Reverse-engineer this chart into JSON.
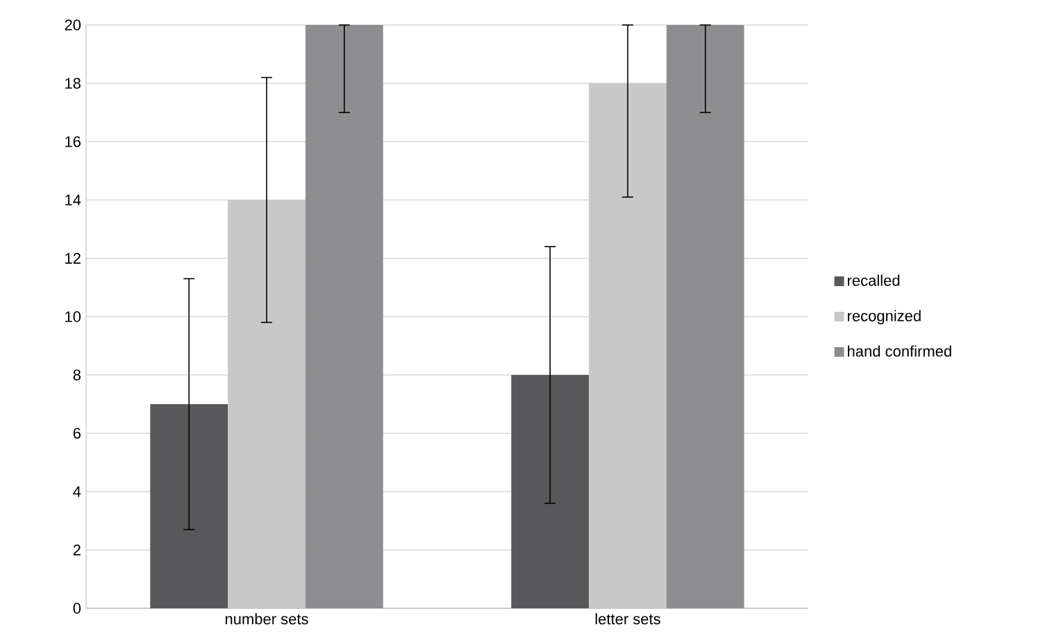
{
  "chart_data": {
    "type": "bar",
    "categories": [
      "number sets",
      "letter sets"
    ],
    "series": [
      {
        "name": "recalled",
        "color": "#58585a",
        "values": [
          7,
          8
        ],
        "errors": [
          [
            2.7,
            11.3
          ],
          [
            3.6,
            12.4
          ]
        ]
      },
      {
        "name": "recognized",
        "color": "#c8c8c8",
        "values": [
          14,
          18
        ],
        "errors": [
          [
            9.8,
            18.2
          ],
          [
            14.1,
            20
          ]
        ]
      },
      {
        "name": "hand confirmed",
        "color": "#8e8e90",
        "values": [
          20,
          20
        ],
        "errors": [
          [
            17,
            20
          ],
          [
            17,
            20
          ]
        ]
      }
    ],
    "ylim": [
      0,
      20
    ],
    "yticks": [
      0,
      2,
      4,
      6,
      8,
      10,
      12,
      14,
      16,
      18,
      20
    ],
    "grid": "y",
    "legend": "right"
  }
}
